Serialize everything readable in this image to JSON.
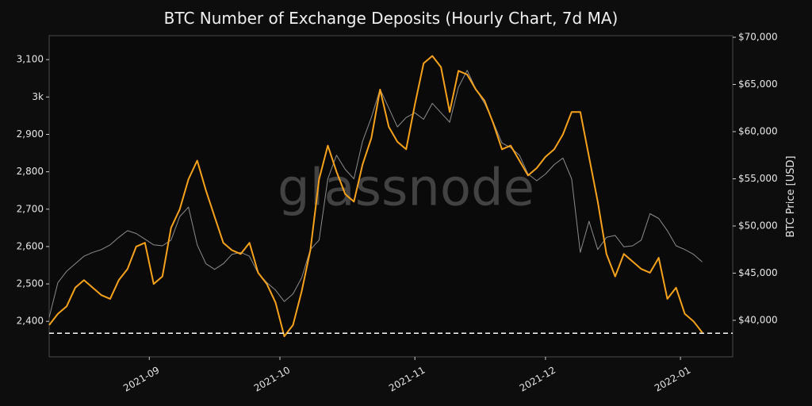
{
  "chart_data": {
    "type": "line",
    "title": "BTC Number of Exchange Deposits (Hourly Chart, 7d MA)",
    "watermark": "glassnode",
    "y2label": "BTC Price [USD]",
    "xlim": [
      0,
      78.5
    ],
    "xticks": [
      {
        "value": 11.5,
        "label": "2021-09"
      },
      {
        "value": 26.5,
        "label": "2021-10"
      },
      {
        "value": 42,
        "label": "2021-11"
      },
      {
        "value": 57,
        "label": "2021-12"
      },
      {
        "value": 72.5,
        "label": "2022-01"
      }
    ],
    "ylim": [
      2305,
      3164
    ],
    "yticks": [
      {
        "value": 2400,
        "label": "2,400"
      },
      {
        "value": 2500,
        "label": "2,500"
      },
      {
        "value": 2600,
        "label": "2,600"
      },
      {
        "value": 2700,
        "label": "2,700"
      },
      {
        "value": 2800,
        "label": "2,800"
      },
      {
        "value": 2900,
        "label": "2,900"
      },
      {
        "value": 3000,
        "label": "3k"
      },
      {
        "value": 3100,
        "label": "3,100"
      }
    ],
    "y2lim": [
      36130,
      70170
    ],
    "y2ticks": [
      {
        "value": 40000,
        "label": "$40,000"
      },
      {
        "value": 45000,
        "label": "$45,000"
      },
      {
        "value": 50000,
        "label": "$50,000"
      },
      {
        "value": 55000,
        "label": "$55,000"
      },
      {
        "value": 60000,
        "label": "$60,000"
      },
      {
        "value": 65000,
        "label": "$65,000"
      },
      {
        "value": 70000,
        "label": "$70,000"
      }
    ],
    "hline": 2368,
    "series": [
      {
        "color": "#8c8c8c",
        "axis": "y2",
        "values": [
          40300,
          44000,
          45200,
          46000,
          46800,
          47200,
          47500,
          48000,
          48800,
          49500,
          49200,
          48600,
          48000,
          47900,
          48500,
          51000,
          52000,
          48000,
          46000,
          45400,
          46000,
          47000,
          47200,
          46800,
          45000,
          44000,
          43200,
          42000,
          42800,
          44500,
          47500,
          48500,
          55000,
          57500,
          56000,
          55000,
          59000,
          61500,
          64500,
          62500,
          60500,
          61500,
          62000,
          61300,
          63000,
          62000,
          61000,
          64700,
          66500,
          64500,
          63000,
          61000,
          58800,
          58300,
          57500,
          55500,
          54800,
          55500,
          56500,
          57200,
          55000,
          47200,
          50500,
          47500,
          48800,
          49000,
          47800,
          47900,
          48500,
          51300,
          50800,
          49500,
          47900,
          47500,
          47000,
          46200
        ]
      },
      {
        "color": "#f7a21b",
        "values": [
          2390,
          2420,
          2440,
          2490,
          2510,
          2490,
          2470,
          2460,
          2510,
          2540,
          2600,
          2610,
          2500,
          2520,
          2650,
          2700,
          2780,
          2830,
          2750,
          2680,
          2610,
          2590,
          2580,
          2610,
          2530,
          2500,
          2450,
          2360,
          2390,
          2480,
          2590,
          2780,
          2870,
          2800,
          2740,
          2720,
          2820,
          2890,
          3020,
          2920,
          2880,
          2860,
          2980,
          3090,
          3110,
          3080,
          2960,
          3070,
          3060,
          3020,
          2990,
          2930,
          2860,
          2870,
          2830,
          2790,
          2810,
          2840,
          2860,
          2900,
          2960,
          2960,
          2840,
          2720,
          2580,
          2520,
          2580,
          2560,
          2540,
          2530,
          2570,
          2460,
          2490,
          2420,
          2400,
          2370
        ]
      }
    ]
  }
}
